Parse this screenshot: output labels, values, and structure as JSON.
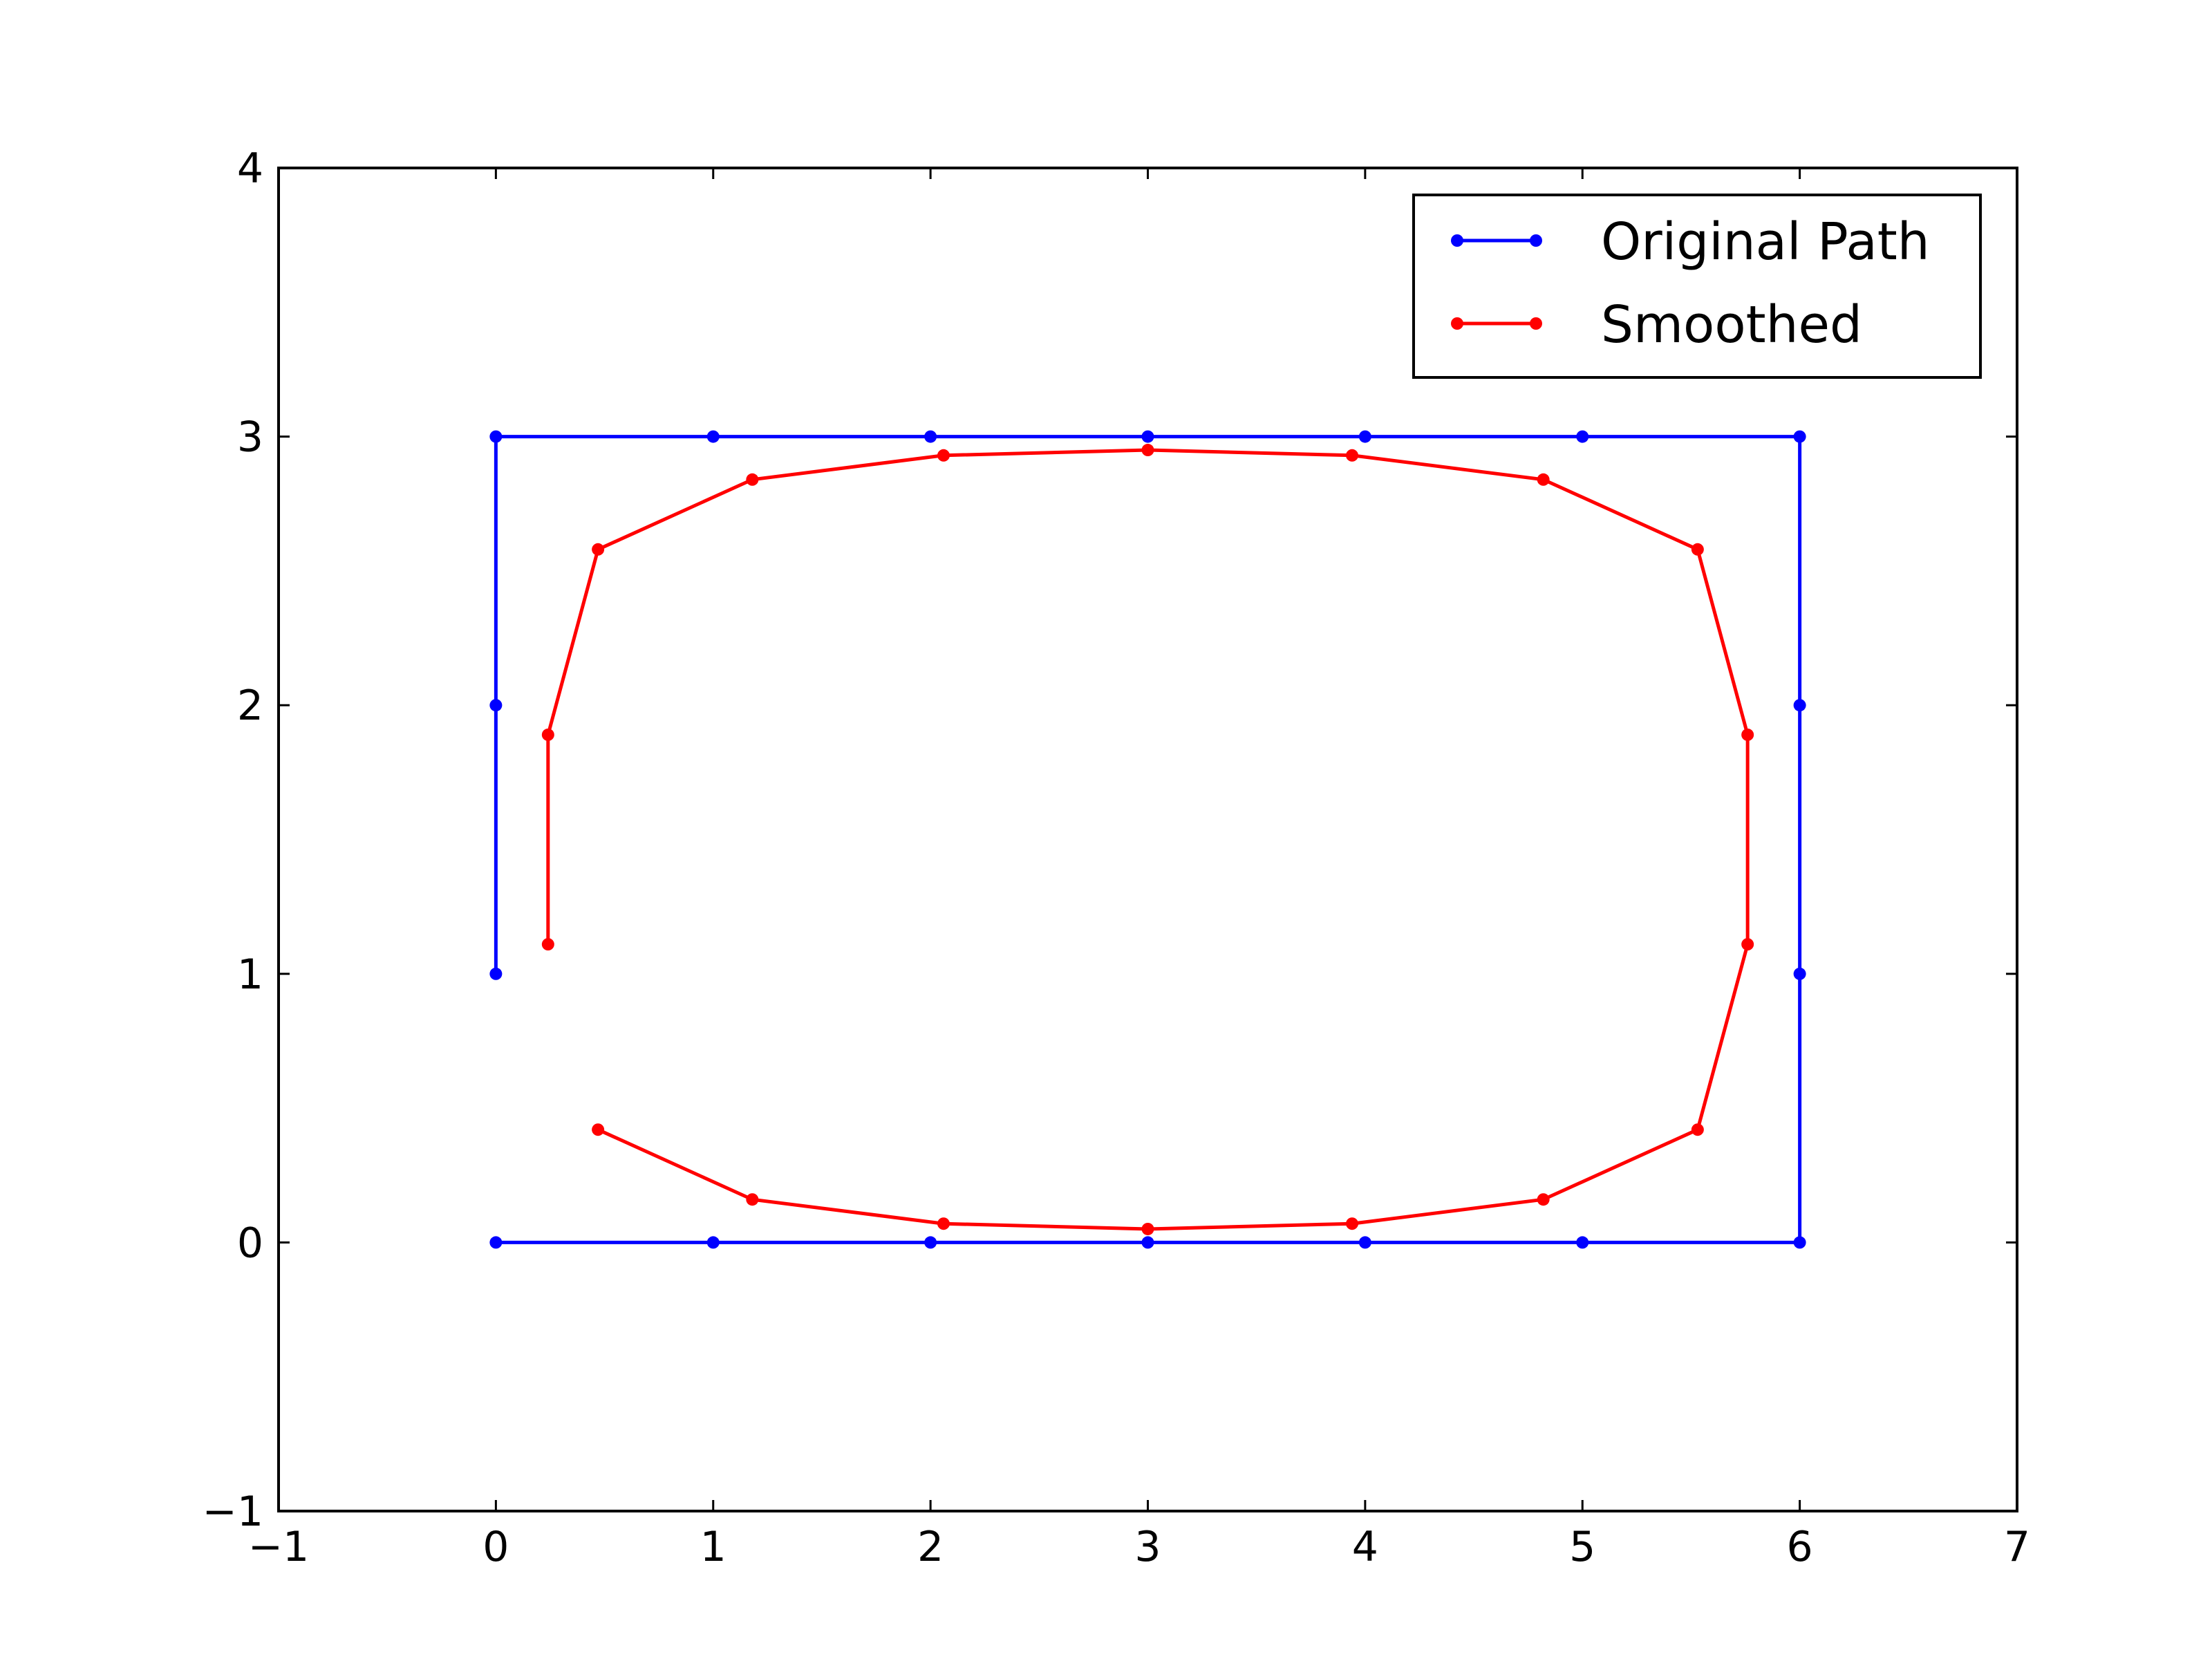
{
  "chart_data": {
    "type": "line",
    "title": "",
    "xlabel": "",
    "ylabel": "",
    "xlim": [
      -1,
      7
    ],
    "ylim": [
      -1,
      4
    ],
    "x_ticks": [
      -1,
      0,
      1,
      2,
      3,
      4,
      5,
      6,
      7
    ],
    "y_ticks": [
      -1,
      0,
      1,
      2,
      3,
      4
    ],
    "x_tick_labels": [
      "−1",
      "0",
      "1",
      "2",
      "3",
      "4",
      "5",
      "6",
      "7"
    ],
    "y_tick_labels": [
      "−1",
      "0",
      "1",
      "2",
      "3",
      "4"
    ],
    "grid": false,
    "legend_position": "top-right",
    "series": [
      {
        "name": "Original Path",
        "color": "#0000ff",
        "marker": "dot",
        "x": [
          0,
          0,
          0,
          1,
          2,
          3,
          4,
          5,
          6,
          6,
          6,
          6,
          5,
          4,
          3,
          2,
          1,
          0
        ],
        "y": [
          1,
          2,
          3,
          3,
          3,
          3,
          3,
          3,
          3,
          2,
          1,
          0,
          0,
          0,
          0,
          0,
          0,
          0
        ]
      },
      {
        "name": "Smoothed",
        "color": "#ff0000",
        "marker": "dot",
        "x": [
          0.24,
          0.24,
          0.47,
          1.18,
          2.06,
          3.0,
          3.94,
          4.82,
          5.53,
          5.76,
          5.76,
          5.53,
          4.82,
          3.94,
          3.0,
          2.06,
          1.18,
          0.47
        ],
        "y": [
          1.11,
          1.89,
          2.58,
          2.84,
          2.93,
          2.95,
          2.93,
          2.84,
          2.58,
          1.89,
          1.11,
          0.42,
          0.16,
          0.07,
          0.05,
          0.07,
          0.16,
          0.42
        ]
      }
    ]
  }
}
